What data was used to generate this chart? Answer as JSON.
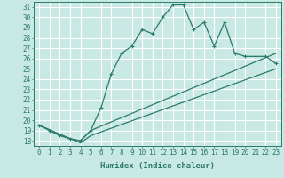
{
  "xlabel": "Humidex (Indice chaleur)",
  "bg_color": "#c8e8e4",
  "line_color": "#2a7a6a",
  "grid_color": "#ffffff",
  "xlim": [
    -0.5,
    23.5
  ],
  "ylim": [
    17.5,
    31.5
  ],
  "xticks": [
    0,
    1,
    2,
    3,
    4,
    5,
    6,
    7,
    8,
    9,
    10,
    11,
    12,
    13,
    14,
    15,
    16,
    17,
    18,
    19,
    20,
    21,
    22,
    23
  ],
  "yticks": [
    18,
    19,
    20,
    21,
    22,
    23,
    24,
    25,
    26,
    27,
    28,
    29,
    30,
    31
  ],
  "line1_x": [
    0,
    1,
    2,
    3,
    4,
    5,
    6,
    7,
    8,
    9,
    10,
    11,
    12,
    13,
    14,
    15,
    16,
    17,
    18,
    19,
    20,
    21,
    22,
    23
  ],
  "line1_y": [
    19.5,
    19.0,
    18.5,
    18.2,
    18.0,
    19.0,
    21.2,
    24.5,
    26.5,
    27.2,
    28.8,
    28.4,
    30.0,
    31.2,
    31.2,
    28.8,
    29.5,
    27.2,
    29.5,
    26.5,
    26.2,
    26.2,
    26.2,
    25.5
  ],
  "line2_x": [
    0,
    3,
    4,
    5,
    23
  ],
  "line2_y": [
    19.5,
    18.2,
    18.0,
    19.0,
    26.5
  ],
  "line3_x": [
    0,
    3,
    4,
    5,
    23
  ],
  "line3_y": [
    19.5,
    18.2,
    17.8,
    18.5,
    25.0
  ]
}
